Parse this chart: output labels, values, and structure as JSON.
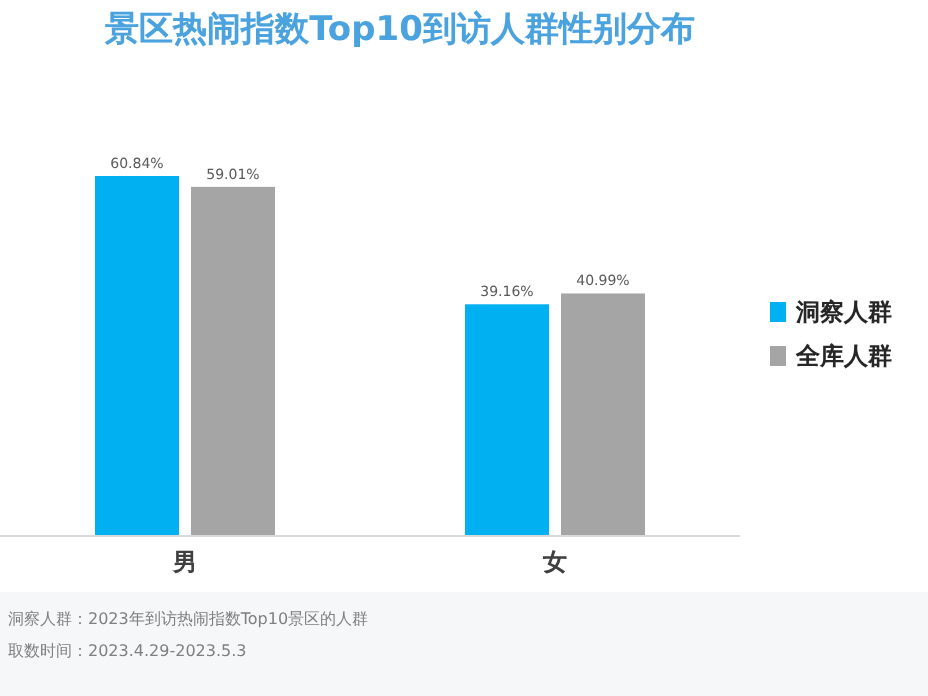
{
  "chart_data": {
    "type": "bar",
    "title": "景区热闹指数Top10到访人群性别分布",
    "categories": [
      "男",
      "女"
    ],
    "series": [
      {
        "name": "洞察人群",
        "color": "#00b0f0",
        "values": [
          60.84,
          39.16
        ],
        "value_labels": [
          "60.84%",
          "39.16%"
        ]
      },
      {
        "name": "全库人群",
        "color": "#a5a5a5",
        "values": [
          59.01,
          40.99
        ],
        "value_labels": [
          "59.01%",
          "40.99%"
        ]
      }
    ],
    "legend": "right",
    "annotations": [
      "洞察人群：2023年到访热闹指数Top10景区的人群",
      "取数时间：2023.4.29-2023.5.3"
    ]
  }
}
